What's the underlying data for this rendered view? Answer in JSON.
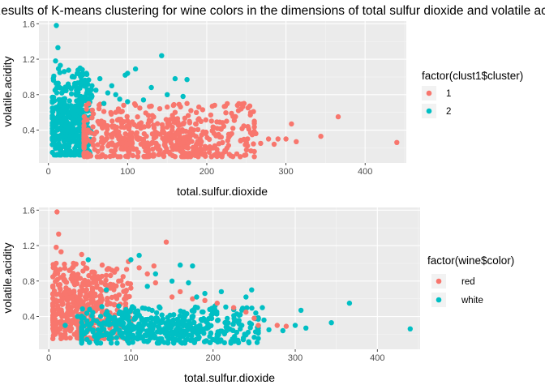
{
  "title": "Results of K-means clustering for wine colors in the dimensions of total sulfur dioxide and volatile acidity",
  "colors": {
    "series_a": "#F8766D",
    "series_b": "#00BFC4",
    "panel_bg": "#EBEBEB",
    "grid": "#FFFFFF",
    "tick_text": "#4D4D4D"
  },
  "chart_data": [
    {
      "type": "scatter",
      "xlabel": "total.sulfur.dioxide",
      "ylabel": "volatile.acidity",
      "xlim": [
        -12,
        452
      ],
      "ylim": [
        0.03,
        1.63
      ],
      "xticks": [
        0,
        100,
        200,
        300,
        400
      ],
      "yticks": [
        0.4,
        0.8,
        1.2,
        1.6
      ],
      "xtick_labels": [
        "0",
        "100",
        "200",
        "300",
        "400"
      ],
      "ytick_labels": [
        "0.4",
        "0.8",
        "1.2",
        "1.6"
      ],
      "grid": true,
      "legend": {
        "title": "factor(clust1$cluster)",
        "position": "right"
      },
      "series": [
        {
          "name": "1",
          "color": "#F8766D",
          "bulk": {
            "x_range": [
              45,
              260
            ],
            "y_range": [
              0.1,
              0.7
            ],
            "x_center": 130,
            "y_center": 0.3,
            "count": 520
          },
          "points": [
            [
              440,
              0.26
            ],
            [
              366,
              0.55
            ],
            [
              344,
              0.33
            ],
            [
              313,
              0.27
            ],
            [
              307,
              0.47
            ],
            [
              300,
              0.3
            ],
            [
              290,
              0.3
            ],
            [
              285,
              0.24
            ],
            [
              278,
              0.3
            ],
            [
              268,
              0.25
            ],
            [
              262,
              0.36
            ],
            [
              260,
              0.5
            ],
            [
              255,
              0.57
            ],
            [
              252,
              0.44
            ],
            [
              247,
              0.7
            ],
            [
              240,
              0.62
            ],
            [
              233,
              0.42
            ],
            [
              225,
              0.5
            ],
            [
              210,
              0.68
            ],
            [
              205,
              0.57
            ],
            [
              190,
              0.66
            ],
            [
              180,
              0.62
            ],
            [
              175,
              0.7
            ],
            [
              165,
              0.69
            ],
            [
              160,
              0.6
            ],
            [
              150,
              0.66
            ],
            [
              130,
              0.67
            ],
            [
              110,
              0.68
            ],
            [
              95,
              0.68
            ],
            [
              70,
              0.61
            ],
            [
              55,
              0.54
            ],
            [
              50,
              0.4
            ]
          ]
        },
        {
          "name": "2",
          "color": "#00BFC4",
          "bulk": {
            "x_range": [
              5,
              55
            ],
            "y_range": [
              0.12,
              1.1
            ],
            "x_center": 25,
            "y_center": 0.5,
            "count": 420
          },
          "points": [
            [
              10,
              1.58
            ],
            [
              12,
              1.33
            ],
            [
              9,
              1.18
            ],
            [
              15,
              1.13
            ],
            [
              40,
              1.1
            ],
            [
              100,
              1.04
            ],
            [
              110,
              1.09
            ],
            [
              143,
              1.24
            ],
            [
              97,
              1.02
            ],
            [
              65,
              0.98
            ],
            [
              80,
              0.9
            ],
            [
              130,
              0.88
            ],
            [
              160,
              0.98
            ],
            [
              175,
              0.97
            ],
            [
              60,
              0.85
            ],
            [
              85,
              0.8
            ],
            [
              90,
              0.75
            ],
            [
              100,
              0.72
            ],
            [
              120,
              0.74
            ],
            [
              150,
              0.8
            ],
            [
              170,
              0.78
            ],
            [
              25,
              0.92
            ],
            [
              30,
              1.0
            ],
            [
              45,
              0.95
            ],
            [
              55,
              0.9
            ],
            [
              70,
              0.7
            ],
            [
              48,
              1.04
            ],
            [
              20,
              1.06
            ],
            [
              35,
              0.88
            ],
            [
              75,
              0.82
            ]
          ]
        }
      ]
    },
    {
      "type": "scatter",
      "xlabel": "total.sulfur.dioxide",
      "ylabel": "volatile.acidity",
      "xlim": [
        -12,
        452
      ],
      "ylim": [
        0.03,
        1.63
      ],
      "xticks": [
        0,
        100,
        200,
        300,
        400
      ],
      "yticks": [
        0.4,
        0.8,
        1.2,
        1.6
      ],
      "xtick_labels": [
        "0",
        "100",
        "200",
        "300",
        "400"
      ],
      "ytick_labels": [
        "0.4",
        "0.8",
        "1.2",
        "1.6"
      ],
      "grid": true,
      "legend": {
        "title": "factor(wine$color)",
        "position": "right"
      },
      "series": [
        {
          "name": "red",
          "color": "#F8766D",
          "bulk": {
            "x_range": [
              5,
              100
            ],
            "y_range": [
              0.15,
              1.0
            ],
            "x_center": 40,
            "y_center": 0.52,
            "count": 460
          },
          "points": [
            [
              10,
              1.58
            ],
            [
              12,
              1.33
            ],
            [
              9,
              1.18
            ],
            [
              15,
              1.13
            ],
            [
              40,
              1.1
            ],
            [
              97,
              1.02
            ],
            [
              65,
              0.98
            ],
            [
              80,
              0.9
            ],
            [
              60,
              0.85
            ],
            [
              85,
              0.8
            ],
            [
              90,
              0.75
            ],
            [
              100,
              0.72
            ],
            [
              25,
              0.92
            ],
            [
              30,
              1.0
            ],
            [
              45,
              0.95
            ],
            [
              55,
              0.9
            ],
            [
              143,
              1.24
            ],
            [
              289,
              0.29
            ],
            [
              278,
              0.3
            ],
            [
              110,
              0.95
            ],
            [
              120,
              0.88
            ],
            [
              130,
              0.78
            ],
            [
              128,
              0.97
            ],
            [
              150,
              0.62
            ],
            [
              160,
              0.68
            ],
            [
              175,
              0.6
            ],
            [
              190,
              0.58
            ],
            [
              205,
              0.55
            ],
            [
              225,
              0.5
            ],
            [
              240,
              0.45
            ],
            [
              250,
              0.38
            ],
            [
              255,
              0.3
            ]
          ]
        },
        {
          "name": "white",
          "color": "#00BFC4",
          "bulk": {
            "x_range": [
              40,
              255
            ],
            "y_range": [
              0.1,
              0.52
            ],
            "x_center": 140,
            "y_center": 0.28,
            "count": 520
          },
          "points": [
            [
              440,
              0.26
            ],
            [
              366,
              0.55
            ],
            [
              344,
              0.33
            ],
            [
              313,
              0.27
            ],
            [
              307,
              0.47
            ],
            [
              300,
              0.3
            ],
            [
              285,
              0.24
            ],
            [
              268,
              0.25
            ],
            [
              262,
              0.36
            ],
            [
              260,
              0.5
            ],
            [
              252,
              0.44
            ],
            [
              247,
              0.7
            ],
            [
              240,
              0.62
            ],
            [
              233,
              0.42
            ],
            [
              210,
              0.68
            ],
            [
              190,
              0.66
            ],
            [
              180,
              0.62
            ],
            [
              175,
              0.97
            ],
            [
              160,
              0.98
            ],
            [
              110,
              1.09
            ],
            [
              100,
              1.04
            ],
            [
              170,
              0.78
            ],
            [
              150,
              0.8
            ],
            [
              130,
              0.88
            ],
            [
              120,
              0.74
            ],
            [
              70,
              0.7
            ],
            [
              48,
              1.04
            ],
            [
              35,
              0.4
            ],
            [
              20,
              0.3
            ],
            [
              60,
              0.25
            ]
          ]
        }
      ]
    }
  ]
}
